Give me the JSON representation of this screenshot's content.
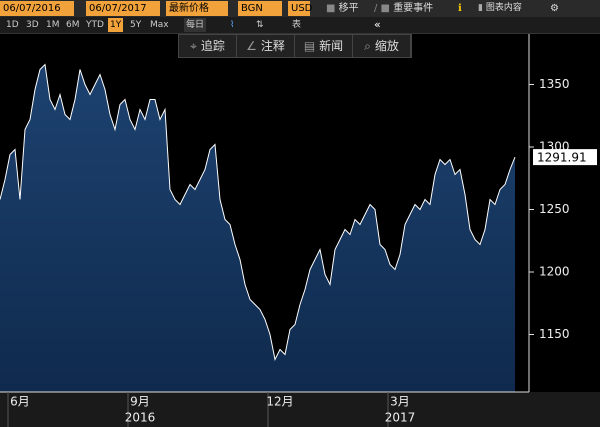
{
  "toolbar": {
    "start_date": "06/07/2016",
    "end_date": "06/07/2017",
    "price_field": "最新价格",
    "source": "BGN",
    "currency": "USD",
    "move": "移平",
    "events": "重要事件",
    "chart_content": "图表内容",
    "periods": [
      "1D",
      "3D",
      "1M",
      "6M",
      "YTD",
      "1Y",
      "5Y",
      "Max"
    ],
    "frequency": "每日",
    "table": "表",
    "overlay_buttons": [
      "追踪",
      "注释",
      "新闻",
      "缩放"
    ]
  },
  "chart_data": {
    "type": "area",
    "color": "#0f2a4d",
    "line_color": "#ffffff",
    "categories": [
      null,
      null,
      null,
      null,
      "6月",
      null,
      null,
      null,
      null,
      null,
      null,
      null,
      null,
      null,
      null,
      null,
      null,
      null,
      null,
      null,
      null,
      null,
      null,
      null,
      null,
      null,
      null,
      null,
      "9月",
      null,
      null,
      null,
      null,
      null,
      null,
      null,
      null,
      null,
      null,
      null,
      null,
      null,
      null,
      null,
      null,
      null,
      null,
      null,
      null,
      null,
      null,
      null,
      null,
      null,
      null,
      null,
      "12月",
      null,
      null,
      null,
      null,
      null,
      null,
      null,
      null,
      null,
      null,
      null,
      null,
      null,
      null,
      null,
      null,
      null,
      null,
      null,
      null,
      null,
      null,
      null,
      "3月",
      null,
      null,
      null,
      null,
      null,
      null,
      null,
      null,
      null,
      null,
      null,
      null,
      null,
      null,
      null,
      null,
      null,
      null,
      null,
      null,
      null,
      null,
      null
    ],
    "year_labels": [
      "2016",
      "2017"
    ],
    "values": [
      1258,
      1274,
      1294,
      1298,
      1258,
      1314,
      1322,
      1346,
      1362,
      1366,
      1338,
      1330,
      1342,
      1326,
      1322,
      1338,
      1362,
      1350,
      1342,
      1350,
      1358,
      1346,
      1326,
      1314,
      1334,
      1338,
      1322,
      1314,
      1330,
      1322,
      1338,
      1338,
      1322,
      1330,
      1266,
      1258,
      1254,
      1262,
      1270,
      1266,
      1274,
      1282,
      1298,
      1302,
      1258,
      1242,
      1238,
      1222,
      1210,
      1190,
      1178,
      1174,
      1170,
      1162,
      1150,
      1130,
      1138,
      1134,
      1154,
      1158,
      1174,
      1186,
      1202,
      1210,
      1218,
      1198,
      1190,
      1218,
      1226,
      1234,
      1230,
      1242,
      1238,
      1246,
      1254,
      1250,
      1222,
      1218,
      1206,
      1202,
      1214,
      1238,
      1246,
      1254,
      1250,
      1258,
      1254,
      1278,
      1290,
      1286,
      1290,
      1278,
      1282,
      1262,
      1234,
      1226,
      1222,
      1234,
      1258,
      1254,
      1266,
      1270,
      1282,
      1291.91
    ],
    "ylim": [
      1104,
      1396
    ],
    "yticks": [
      1150,
      1200,
      1250,
      1300,
      1350
    ]
  }
}
